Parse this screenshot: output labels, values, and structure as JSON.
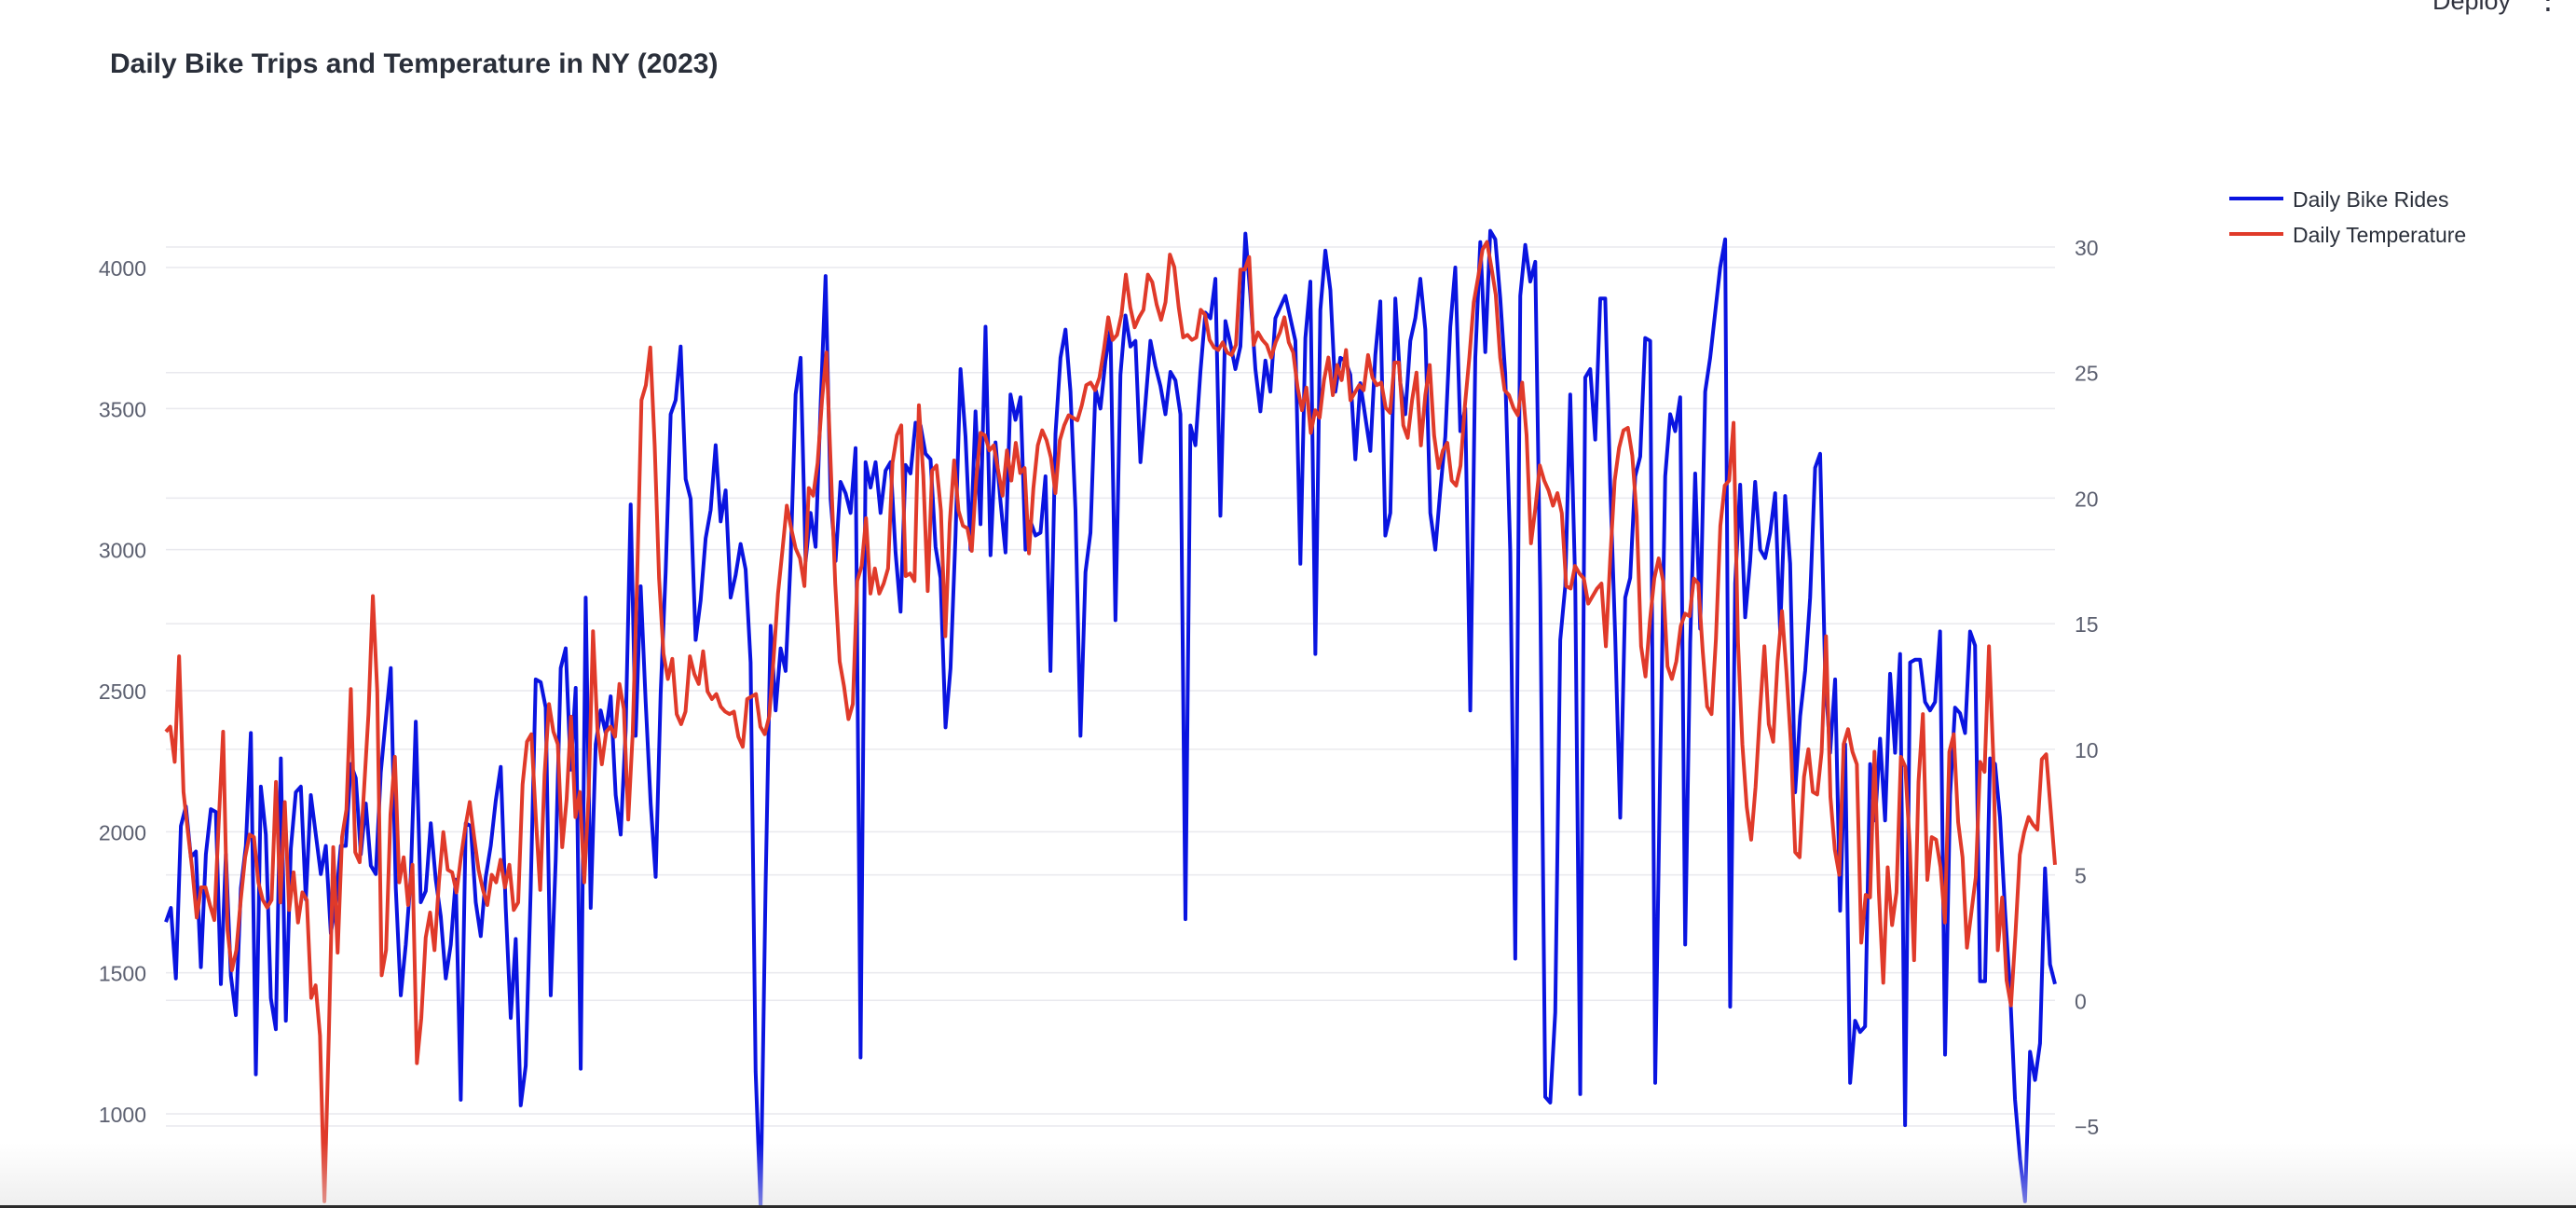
{
  "app": {
    "deploy_label": "Deploy",
    "menu_icon": "more-vertical-icon"
  },
  "chart_data": {
    "type": "line",
    "title": "Daily Bike Trips and Temperature in NY (2023)",
    "xlabel": "",
    "ylabel": "",
    "y2label": "",
    "ylim": [
      720,
      4180
    ],
    "y2lim": [
      -8,
      31
    ],
    "yticks": [
      1000,
      1500,
      2000,
      2500,
      3000,
      3500,
      4000
    ],
    "y2ticks": [
      -5,
      0,
      5,
      10,
      15,
      20,
      25,
      30
    ],
    "y2tick_labels": [
      "−5",
      "0",
      "5",
      "10",
      "15",
      "20",
      "25",
      "30"
    ],
    "grid": true,
    "legend": "top-right",
    "series": [
      {
        "name": "Daily Bike Rides",
        "axis": "left",
        "color": "#0a14e0",
        "values": [
          1680,
          1730,
          1480,
          2020,
          2090,
          1910,
          1930,
          1520,
          1920,
          2080,
          2070,
          1460,
          1920,
          1490,
          1350,
          1800,
          1950,
          2350,
          1140,
          2160,
          1990,
          1410,
          1300,
          2260,
          1330,
          1940,
          2140,
          2160,
          1760,
          2130,
          1990,
          1850,
          1950,
          1640,
          1750,
          1950,
          1950,
          2240,
          2190,
          1920,
          2100,
          1880,
          1850,
          2210,
          2400,
          2580,
          1800,
          1420,
          1600,
          1840,
          2390,
          1750,
          1790,
          2030,
          1830,
          1700,
          1480,
          1600,
          1830,
          1050,
          2030,
          2020,
          1750,
          1630,
          1840,
          1950,
          2110,
          2230,
          1730,
          1340,
          1620,
          1030,
          1170,
          1800,
          2540,
          2530,
          2440,
          1420,
          1900,
          2580,
          2650,
          2220,
          2510,
          1160,
          2830,
          1730,
          2310,
          2430,
          2350,
          2480,
          2130,
          1990,
          2360,
          3160,
          2340,
          2870,
          2460,
          2100,
          1840,
          2490,
          2920,
          3480,
          3530,
          3720,
          3250,
          3180,
          2680,
          2820,
          3040,
          3140,
          3370,
          3100,
          3210,
          2830,
          2910,
          3020,
          2930,
          2600,
          1150,
          670,
          1810,
          2730,
          2430,
          2650,
          2570,
          2960,
          3550,
          3680,
          2960,
          3130,
          3010,
          3510,
          3970,
          3180,
          2960,
          3240,
          3200,
          3130,
          3360,
          1200,
          3310,
          3220,
          3310,
          3130,
          3280,
          3310,
          2990,
          2780,
          3300,
          3270,
          3450,
          3440,
          3340,
          3320,
          3010,
          2900,
          2370,
          2580,
          3050,
          3640,
          3400,
          3000,
          3490,
          3090,
          3790,
          2980,
          3380,
          3170,
          2990,
          3550,
          3460,
          3540,
          3000,
          3100,
          3050,
          3060,
          3260,
          2570,
          3410,
          3680,
          3780,
          3560,
          3140,
          2340,
          2920,
          3060,
          3570,
          3500,
          3670,
          3780,
          2750,
          3620,
          3830,
          3720,
          3740,
          3310,
          3520,
          3740,
          3650,
          3580,
          3480,
          3630,
          3600,
          3480,
          1690,
          3440,
          3370,
          3630,
          3840,
          3820,
          3960,
          3120,
          3810,
          3730,
          3640,
          3720,
          4120,
          3900,
          3640,
          3490,
          3670,
          3560,
          3820,
          3860,
          3900,
          3820,
          3740,
          2950,
          3750,
          3950,
          2630,
          3850,
          4060,
          3920,
          3560,
          3680,
          3670,
          3620,
          3320,
          3590,
          3470,
          3350,
          3690,
          3880,
          3050,
          3130,
          3890,
          3590,
          3480,
          3740,
          3820,
          3960,
          3780,
          3130,
          3000,
          3210,
          3400,
          3790,
          4000,
          3420,
          3500,
          2430,
          3680,
          4090,
          3700,
          4130,
          4100,
          3890,
          3620,
          2990,
          1550,
          3900,
          4080,
          3950,
          4020,
          2860,
          1060,
          1040,
          1360,
          2680,
          2870,
          3550,
          2880,
          1070,
          3610,
          3640,
          3390,
          3890,
          3890,
          3230,
          2690,
          2050,
          2830,
          2900,
          3260,
          3330,
          3750,
          3740,
          1110,
          2240,
          3260,
          3480,
          3420,
          3540,
          1600,
          2670,
          3270,
          2720,
          3560,
          3680,
          3840,
          4000,
          4100,
          1380,
          2880,
          3230,
          2760,
          2960,
          3240,
          3000,
          2970,
          3060,
          3200,
          2710,
          3190,
          2950,
          2140,
          2410,
          2570,
          2830,
          3290,
          3340,
          2560,
          2280,
          2540,
          1720,
          2310,
          1110,
          1330,
          1290,
          1310,
          2240,
          2040,
          2330,
          2040,
          2560,
          2280,
          2630,
          960,
          2600,
          2610,
          2610,
          2460,
          2430,
          2460,
          2710,
          1210,
          2130,
          2440,
          2420,
          2350,
          2710,
          2660,
          1470,
          1470,
          2260,
          2240,
          2050,
          1720,
          1440,
          1050,
          840,
          690,
          1220,
          1120,
          1250,
          1870,
          1530,
          1460
        ]
      },
      {
        "name": "Daily Temperature",
        "axis": "right",
        "color": "#e03a2a",
        "values": [
          10.7,
          10.9,
          9.5,
          13.7,
          8.3,
          6.7,
          5.2,
          3.3,
          4.5,
          4.5,
          3.8,
          3.2,
          7.1,
          10.7,
          2.8,
          1.2,
          2.0,
          4.0,
          5.7,
          6.6,
          6.5,
          4.7,
          4.0,
          3.7,
          4.0,
          8.7,
          3.9,
          7.9,
          3.6,
          5.1,
          3.1,
          4.3,
          4.0,
          0.1,
          0.6,
          -1.4,
          -8.0,
          -1.4,
          6.1,
          1.9,
          6.5,
          7.6,
          12.4,
          5.9,
          5.5,
          8.4,
          11.4,
          16.1,
          12.3,
          1.0,
          2.0,
          7.4,
          9.7,
          4.7,
          5.7,
          3.8,
          5.4,
          -2.5,
          -0.7,
          2.5,
          3.5,
          2.0,
          4.7,
          6.7,
          5.2,
          5.1,
          4.3,
          5.7,
          6.9,
          7.9,
          6.5,
          5.2,
          4.4,
          3.8,
          5.0,
          4.7,
          5.6,
          4.5,
          5.4,
          3.6,
          3.9,
          8.6,
          10.3,
          10.6,
          7.3,
          4.4,
          9.0,
          11.8,
          10.7,
          10.2,
          6.1,
          8.0,
          11.3,
          7.3,
          8.3,
          4.7,
          8.2,
          14.7,
          10.8,
          9.4,
          10.7,
          10.9,
          10.5,
          12.6,
          11.6,
          7.2,
          10.6,
          16.7,
          23.9,
          24.5,
          26.0,
          22.1,
          16.8,
          13.8,
          12.8,
          13.6,
          11.4,
          11.0,
          11.5,
          13.7,
          13.0,
          12.6,
          13.9,
          12.3,
          12.0,
          12.2,
          11.7,
          11.5,
          11.4,
          11.5,
          10.5,
          10.1,
          12.0,
          12.1,
          12.2,
          10.9,
          10.6,
          11.3,
          13.6,
          16.2,
          17.9,
          19.7,
          18.8,
          18.0,
          17.6,
          16.5,
          20.4,
          20.1,
          21.4,
          23.9,
          25.8,
          21.2,
          16.6,
          13.5,
          12.5,
          11.2,
          11.8,
          16.7,
          17.3,
          19.2,
          16.2,
          17.2,
          16.2,
          16.6,
          17.2,
          21.4,
          22.5,
          22.9,
          16.9,
          17.0,
          16.7,
          23.7,
          20.9,
          16.3,
          21.1,
          21.3,
          19.5,
          14.5,
          19.0,
          21.5,
          19.5,
          18.9,
          18.8,
          17.9,
          20.7,
          22.6,
          22.5,
          21.9,
          22.1,
          21.1,
          20.1,
          21.9,
          20.7,
          22.2,
          21.0,
          21.2,
          17.8,
          20.4,
          22.1,
          22.7,
          22.3,
          21.6,
          20.2,
          22.3,
          22.9,
          23.3,
          23.2,
          23.1,
          23.7,
          24.5,
          24.6,
          24.3,
          24.8,
          25.9,
          27.2,
          26.3,
          26.5,
          27.3,
          28.9,
          27.6,
          26.8,
          27.2,
          27.5,
          28.9,
          28.6,
          27.7,
          27.1,
          27.8,
          29.7,
          29.2,
          27.6,
          26.4,
          26.5,
          26.3,
          26.4,
          27.5,
          27.3,
          26.3,
          26.0,
          25.9,
          26.2,
          25.8,
          25.7,
          26.1,
          29.1,
          29.1,
          29.6,
          26.1,
          26.6,
          26.3,
          26.1,
          25.6,
          26.2,
          26.6,
          27.2,
          26.2,
          25.8,
          24.4,
          23.5,
          24.4,
          22.6,
          23.5,
          23.2,
          24.7,
          25.6,
          24.1,
          25.3,
          24.7,
          25.9,
          23.9,
          24.2,
          24.5,
          24.3,
          25.7,
          24.8,
          24.5,
          24.6,
          23.6,
          23.4,
          25.4,
          25.4,
          22.9,
          22.4,
          23.9,
          25.0,
          22.1,
          24.1,
          25.3,
          22.5,
          21.2,
          21.9,
          22.2,
          20.7,
          20.5,
          21.3,
          23.7,
          25.6,
          27.8,
          28.8,
          29.9,
          30.2,
          29.2,
          28.1,
          25.6,
          24.3,
          24.1,
          23.6,
          23.3,
          24.6,
          22.5,
          18.2,
          19.6,
          21.3,
          20.7,
          20.3,
          19.7,
          20.2,
          19.4,
          16.5,
          16.4,
          17.3,
          17.0,
          16.8,
          15.8,
          16.1,
          16.4,
          16.6,
          14.1,
          17.6,
          20.7,
          22.0,
          22.7,
          22.8,
          21.7,
          19.3,
          14.1,
          12.9,
          15.1,
          16.8,
          17.6,
          16.7,
          13.3,
          12.8,
          13.5,
          14.9,
          15.4,
          15.3,
          16.8,
          16.6,
          13.9,
          11.7,
          11.4,
          14.4,
          18.9,
          20.5,
          20.7,
          23.0,
          14.3,
          10.2,
          7.7,
          6.4,
          8.5,
          11.5,
          14.1,
          11.0,
          10.3,
          13.5,
          15.5,
          13.1,
          10.3,
          5.9,
          5.7,
          8.9,
          10.0,
          8.3,
          8.2,
          9.9,
          14.5,
          8.1,
          6.0,
          5.0,
          10.2,
          10.8,
          9.9,
          9.4,
          2.3,
          4.2,
          4.1,
          9.9,
          4.3,
          0.7,
          5.3,
          3.0,
          4.3,
          9.7,
          9.3,
          6.2,
          1.6,
          8.7,
          11.4,
          4.8,
          6.5,
          6.4,
          5.3,
          3.1,
          9.9,
          10.6,
          7.1,
          5.7,
          2.1,
          3.5,
          4.9,
          9.5,
          9.1,
          14.1,
          9.6,
          2.0,
          4.1,
          0.8,
          -0.2,
          2.6,
          5.8,
          6.7,
          7.3,
          7.0,
          6.8,
          9.6,
          9.8,
          7.6,
          5.4
        ]
      }
    ]
  }
}
